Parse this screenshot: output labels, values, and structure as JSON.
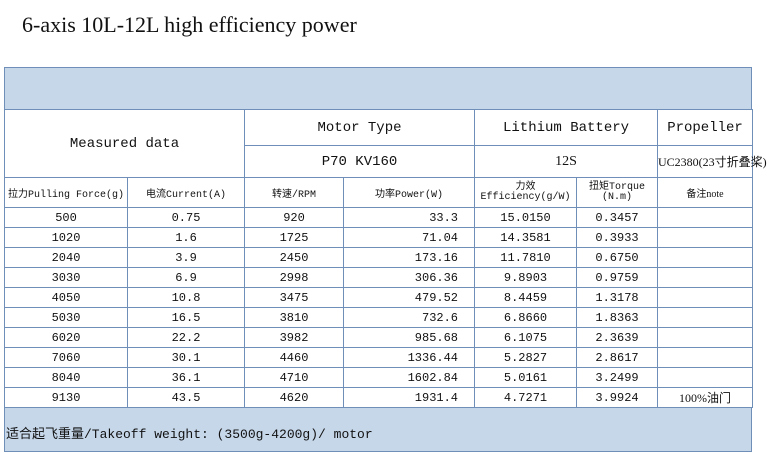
{
  "title": "6-axis 10L-12L high efficiency power",
  "header": {
    "measured": "Measured data",
    "motor_type": "Motor Type",
    "battery": "Lithium Battery",
    "propeller": "Propeller",
    "motor_value": "P70 KV160",
    "battery_value": "12S",
    "propeller_value": "UC2380(23寸折叠桨)"
  },
  "columns": {
    "pull": "拉力Pulling Force(g)",
    "current": "电流Current(A)",
    "rpm": "转速/RPM",
    "power": "功率Power(W)",
    "eff_cn": "力效",
    "eff_en": "Efficiency(g/W)",
    "torque_cn": "扭矩Torque",
    "torque_unit": "(N.m)",
    "note": "备注note"
  },
  "rows": [
    {
      "pull": "500",
      "current": "0.75",
      "rpm": "920",
      "power": "33.3",
      "eff": "15.0150",
      "torque": "0.3457",
      "note": ""
    },
    {
      "pull": "1020",
      "current": "1.6",
      "rpm": "1725",
      "power": "71.04",
      "eff": "14.3581",
      "torque": "0.3933",
      "note": ""
    },
    {
      "pull": "2040",
      "current": "3.9",
      "rpm": "2450",
      "power": "173.16",
      "eff": "11.7810",
      "torque": "0.6750",
      "note": ""
    },
    {
      "pull": "3030",
      "current": "6.9",
      "rpm": "2998",
      "power": "306.36",
      "eff": "9.8903",
      "torque": "0.9759",
      "note": ""
    },
    {
      "pull": "4050",
      "current": "10.8",
      "rpm": "3475",
      "power": "479.52",
      "eff": "8.4459",
      "torque": "1.3178",
      "note": ""
    },
    {
      "pull": "5030",
      "current": "16.5",
      "rpm": "3810",
      "power": "732.6",
      "eff": "6.8660",
      "torque": "1.8363",
      "note": ""
    },
    {
      "pull": "6020",
      "current": "22.2",
      "rpm": "3982",
      "power": "985.68",
      "eff": "6.1075",
      "torque": "2.3639",
      "note": ""
    },
    {
      "pull": "7060",
      "current": "30.1",
      "rpm": "4460",
      "power": "1336.44",
      "eff": "5.2827",
      "torque": "2.8617",
      "note": ""
    },
    {
      "pull": "8040",
      "current": "36.1",
      "rpm": "4710",
      "power": "1602.84",
      "eff": "5.0161",
      "torque": "3.2499",
      "note": ""
    },
    {
      "pull": "9130",
      "current": "43.5",
      "rpm": "4620",
      "power": "1931.4",
      "eff": "4.7271",
      "torque": "3.9924",
      "note": "100%油门"
    }
  ],
  "footer": "适合起飞重量/Takeoff weight: (3500g-4200g)/ motor"
}
